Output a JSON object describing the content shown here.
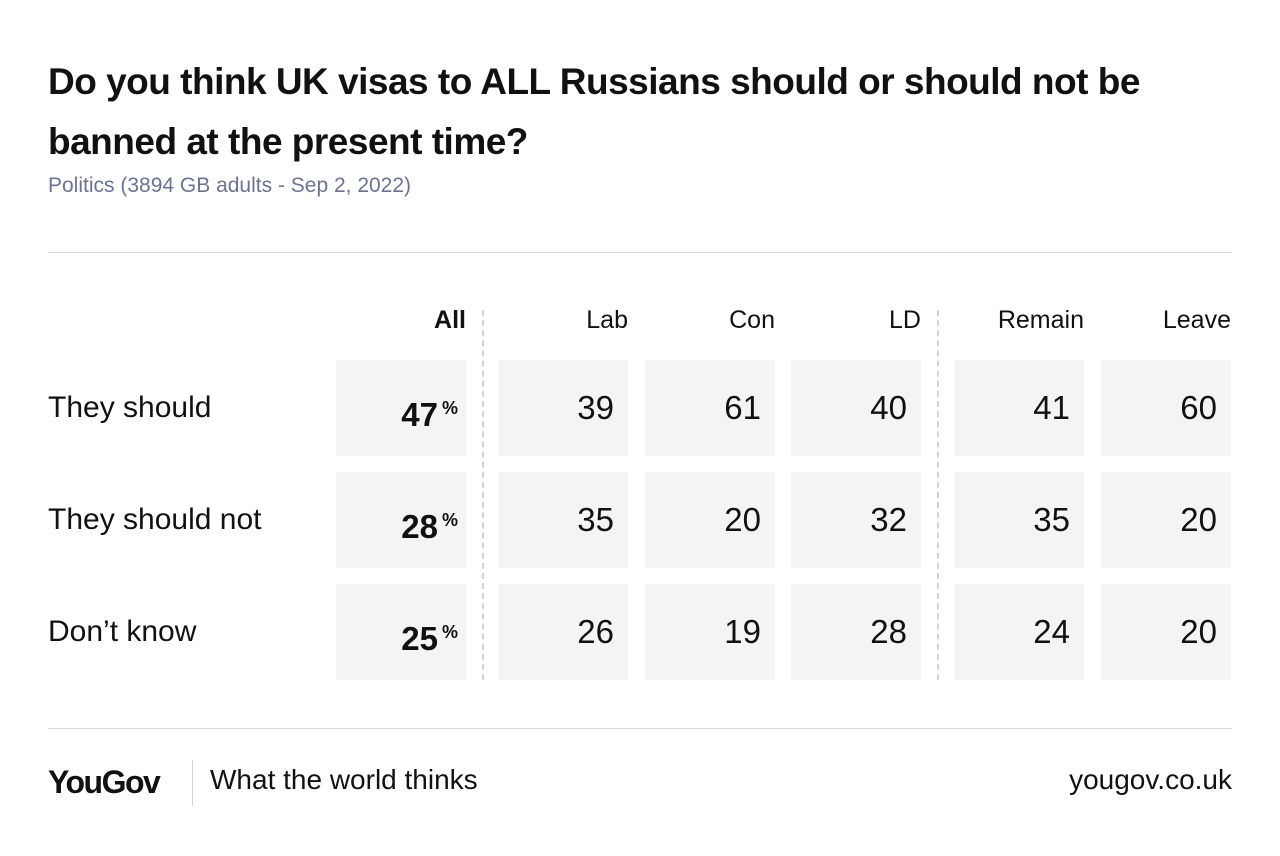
{
  "chart_data": {
    "type": "table",
    "title": "Do you think UK visas to ALL Russians should or should not be banned at the present time?",
    "subtitle": "Politics (3894 GB adults - Sep 2, 2022)",
    "columns": [
      "All",
      "Lab",
      "Con",
      "LD",
      "Remain",
      "Leave"
    ],
    "rows": [
      {
        "label": "They should",
        "values": [
          47,
          39,
          61,
          40,
          41,
          60
        ]
      },
      {
        "label": "They should not",
        "values": [
          28,
          35,
          20,
          32,
          35,
          20
        ]
      },
      {
        "label": "Don’t know",
        "values": [
          25,
          26,
          19,
          28,
          24,
          20
        ]
      }
    ],
    "unit": "%",
    "cell_color": "#f3f4f6"
  },
  "footer": {
    "logo": "YouGov",
    "tagline": "What the world thinks",
    "site": "yougov.co.uk"
  }
}
